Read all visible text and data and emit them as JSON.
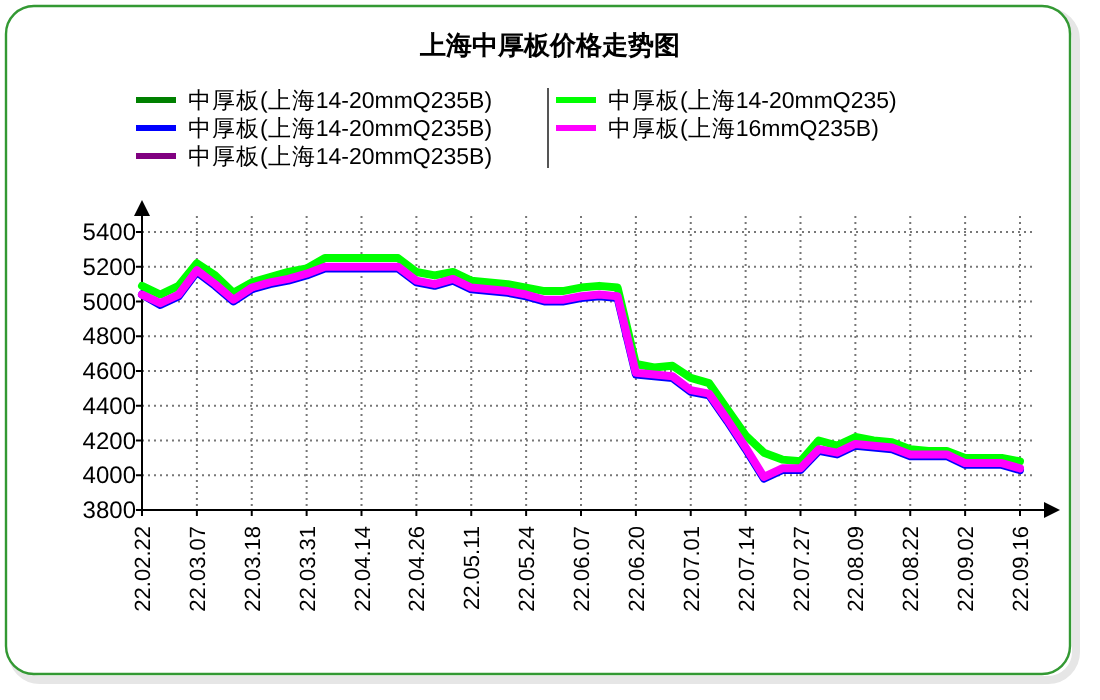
{
  "chart_data": {
    "type": "line",
    "title": "上海中厚板价格走势图",
    "categories": [
      "22.02.22",
      null,
      null,
      "22.03.07",
      null,
      null,
      "22.03.18",
      null,
      null,
      "22.03.31",
      null,
      null,
      "22.04.14",
      null,
      null,
      "22.04.26",
      null,
      null,
      "22.05.11",
      null,
      null,
      "22.05.24",
      null,
      null,
      "22.06.07",
      null,
      null,
      "22.06.20",
      null,
      null,
      "22.07.01",
      null,
      null,
      "22.07.14",
      null,
      null,
      "22.07.27",
      null,
      null,
      "22.08.09",
      null,
      null,
      "22.08.22",
      null,
      null,
      "22.09.02",
      null,
      null,
      "22.09.16"
    ],
    "series": [
      {
        "name": "中厚板(上海14-20mmQ235B)",
        "color": "#008000",
        "values": [
          null,
          null,
          null,
          null,
          null,
          null,
          null,
          null,
          null,
          null,
          null,
          null,
          null,
          null,
          null,
          null,
          null,
          null,
          null,
          null,
          null,
          null,
          null,
          null,
          null,
          null,
          null,
          null,
          null,
          null,
          null,
          null,
          null,
          null,
          null,
          null,
          null,
          null,
          null,
          null,
          null,
          null,
          null,
          null,
          null,
          null,
          null,
          null,
          null
        ]
      },
      {
        "name": "中厚板(上海14-20mmQ235B)",
        "color": "#0000ff",
        "values": [
          5040,
          4980,
          5030,
          5170,
          5090,
          5000,
          5070,
          5100,
          5120,
          5150,
          5190,
          5190,
          5190,
          5190,
          5190,
          5110,
          5090,
          5120,
          5070,
          5060,
          5050,
          5030,
          5000,
          5000,
          5020,
          5030,
          5020,
          4580,
          4570,
          4560,
          4480,
          4460,
          4310,
          4150,
          3980,
          4030,
          4030,
          4140,
          4120,
          4170,
          4160,
          4150,
          4110,
          4110,
          4110,
          4060,
          4060,
          4060,
          4030
        ]
      },
      {
        "name": "中厚板(上海14-20mmQ235B)",
        "color": "#800080",
        "values": [
          null,
          null,
          null,
          null,
          null,
          null,
          null,
          null,
          null,
          null,
          null,
          null,
          null,
          null,
          null,
          null,
          null,
          null,
          null,
          null,
          null,
          null,
          null,
          null,
          null,
          null,
          null,
          null,
          null,
          null,
          null,
          null,
          null,
          null,
          null,
          null,
          null,
          null,
          null,
          null,
          null,
          null,
          null,
          null,
          null,
          null,
          null,
          null,
          null
        ]
      },
      {
        "name": "中厚板(上海14-20mmQ235)",
        "color": "#00ff00",
        "values": [
          5090,
          5040,
          5090,
          5220,
          5150,
          5050,
          5110,
          5140,
          5170,
          5190,
          5250,
          5250,
          5250,
          5250,
          5250,
          5170,
          5150,
          5170,
          5120,
          5110,
          5100,
          5080,
          5060,
          5060,
          5080,
          5090,
          5080,
          4640,
          4620,
          4630,
          4560,
          4530,
          4380,
          4230,
          4130,
          4090,
          4080,
          4200,
          4170,
          4220,
          4200,
          4190,
          4150,
          4140,
          4140,
          4100,
          4100,
          4100,
          4080
        ]
      },
      {
        "name": "中厚板(上海16mmQ235B)",
        "color": "#ff00ff",
        "values": [
          5040,
          4990,
          5040,
          5180,
          5100,
          5010,
          5080,
          5110,
          5130,
          5160,
          5200,
          5200,
          5200,
          5200,
          5200,
          5120,
          5100,
          5130,
          5080,
          5070,
          5060,
          5040,
          5010,
          5010,
          5030,
          5040,
          5030,
          4590,
          4580,
          4570,
          4490,
          4470,
          4320,
          4160,
          3990,
          4040,
          4040,
          4150,
          4130,
          4180,
          4170,
          4160,
          4120,
          4120,
          4120,
          4070,
          4070,
          4070,
          4040
        ]
      }
    ],
    "ylim": [
      3800,
      5400
    ],
    "yticks": [
      3800,
      4000,
      4200,
      4400,
      4600,
      4800,
      5000,
      5200,
      5400
    ],
    "grid": true,
    "legend": "top"
  }
}
